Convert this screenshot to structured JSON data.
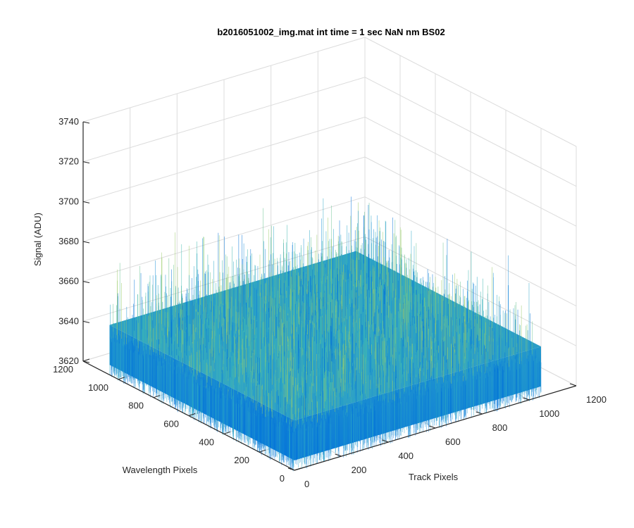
{
  "chart_data": {
    "type": "surface",
    "title": "b2016051002_img.mat int time = 1 sec  NaN nm BS02",
    "xlabel": "Track Pixels",
    "ylabel": "Wavelength Pixels",
    "zlabel": "Signal (ADU)",
    "xlim": [
      0,
      1200
    ],
    "ylim": [
      0,
      1200
    ],
    "zlim": [
      3620,
      3740
    ],
    "xticks": [
      "0",
      "200",
      "400",
      "600",
      "800",
      "1000",
      "1200"
    ],
    "yticks": [
      "0",
      "200",
      "400",
      "600",
      "800",
      "1000",
      "1200"
    ],
    "zticks": [
      "3620",
      "3640",
      "3660",
      "3680",
      "3700",
      "3720",
      "3740"
    ],
    "x_extent": [
      0,
      1050
    ],
    "y_extent": [
      0,
      1050
    ],
    "signal_mean": 3645,
    "signal_typical_range": [
      3625,
      3700
    ],
    "grid": true,
    "view": "3d-isometric",
    "colormap": [
      "#0072d9",
      "#1a8fd6",
      "#2aa6c6",
      "#3eb8b0",
      "#68c290",
      "#9bcc6a"
    ]
  }
}
